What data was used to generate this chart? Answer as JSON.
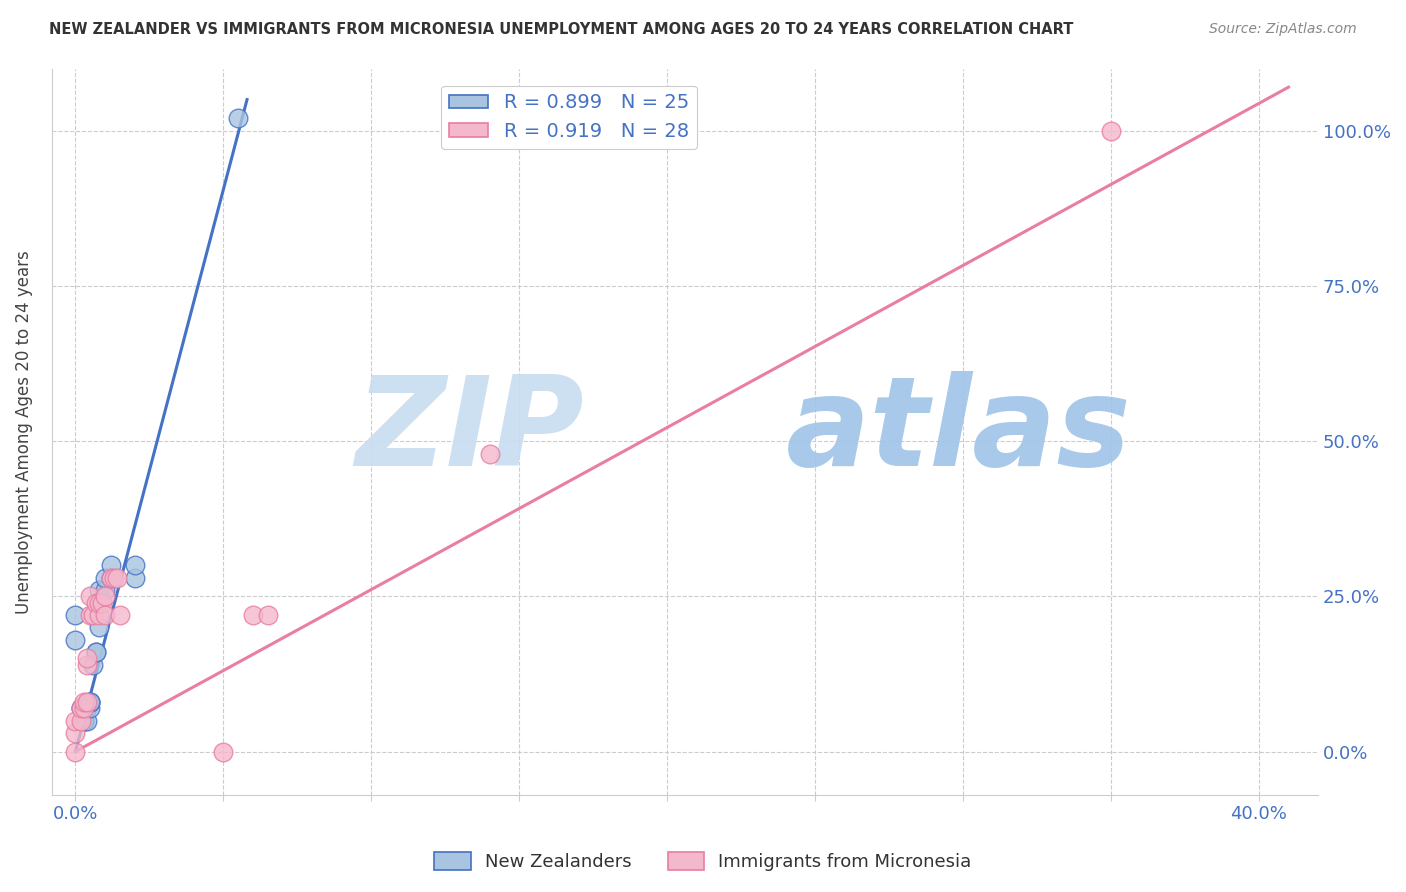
{
  "title": "NEW ZEALANDER VS IMMIGRANTS FROM MICRONESIA UNEMPLOYMENT AMONG AGES 20 TO 24 YEARS CORRELATION CHART",
  "source": "Source: ZipAtlas.com",
  "xlabel_ticks": [
    "0.0%",
    "",
    "",
    "",
    "",
    "",
    "",
    "",
    "40.0%"
  ],
  "xlabel_tick_vals": [
    0.0,
    0.05,
    0.1,
    0.15,
    0.2,
    0.25,
    0.3,
    0.35,
    0.4
  ],
  "ylabel": "Unemployment Among Ages 20 to 24 years",
  "ylabel_ticks": [
    "0.0%",
    "25.0%",
    "50.0%",
    "75.0%",
    "100.0%"
  ],
  "ylabel_tick_vals": [
    0.0,
    0.25,
    0.5,
    0.75,
    1.0
  ],
  "xlim": [
    -0.008,
    0.42
  ],
  "ylim": [
    -0.07,
    1.1
  ],
  "nz_scatter_x": [
    0.0,
    0.0,
    0.002,
    0.002,
    0.003,
    0.003,
    0.003,
    0.004,
    0.004,
    0.005,
    0.005,
    0.005,
    0.005,
    0.006,
    0.007,
    0.007,
    0.008,
    0.008,
    0.01,
    0.01,
    0.012,
    0.012,
    0.02,
    0.02,
    0.055
  ],
  "nz_scatter_y": [
    0.18,
    0.22,
    0.07,
    0.07,
    0.05,
    0.05,
    0.05,
    0.05,
    0.07,
    0.07,
    0.08,
    0.08,
    0.08,
    0.14,
    0.16,
    0.16,
    0.2,
    0.26,
    0.26,
    0.28,
    0.28,
    0.3,
    0.28,
    0.3,
    1.02
  ],
  "micronesia_scatter_x": [
    0.0,
    0.0,
    0.0,
    0.002,
    0.002,
    0.003,
    0.003,
    0.004,
    0.004,
    0.004,
    0.005,
    0.005,
    0.006,
    0.007,
    0.008,
    0.008,
    0.009,
    0.01,
    0.01,
    0.012,
    0.013,
    0.014,
    0.015,
    0.05,
    0.06,
    0.065,
    0.14,
    0.35
  ],
  "micronesia_scatter_y": [
    0.0,
    0.03,
    0.05,
    0.05,
    0.07,
    0.07,
    0.08,
    0.08,
    0.14,
    0.15,
    0.22,
    0.25,
    0.22,
    0.24,
    0.22,
    0.24,
    0.24,
    0.22,
    0.25,
    0.28,
    0.28,
    0.28,
    0.22,
    0.0,
    0.22,
    0.22,
    0.48,
    1.0
  ],
  "nz_line_x": [
    0.0,
    0.058
  ],
  "nz_line_y": [
    0.0,
    1.05
  ],
  "micronesia_line_x": [
    0.0,
    0.41
  ],
  "micronesia_line_y": [
    0.0,
    1.07
  ],
  "nz_color": "#4472c4",
  "micronesia_color": "#e97da2",
  "nz_scatter_color": "#a8c4e0",
  "micronesia_scatter_color": "#f4b8cc",
  "background_color": "#ffffff",
  "grid_color": "#cccccc",
  "watermark_zip": "ZIP",
  "watermark_atlas": "atlas",
  "watermark_color": "#d0e4f5"
}
